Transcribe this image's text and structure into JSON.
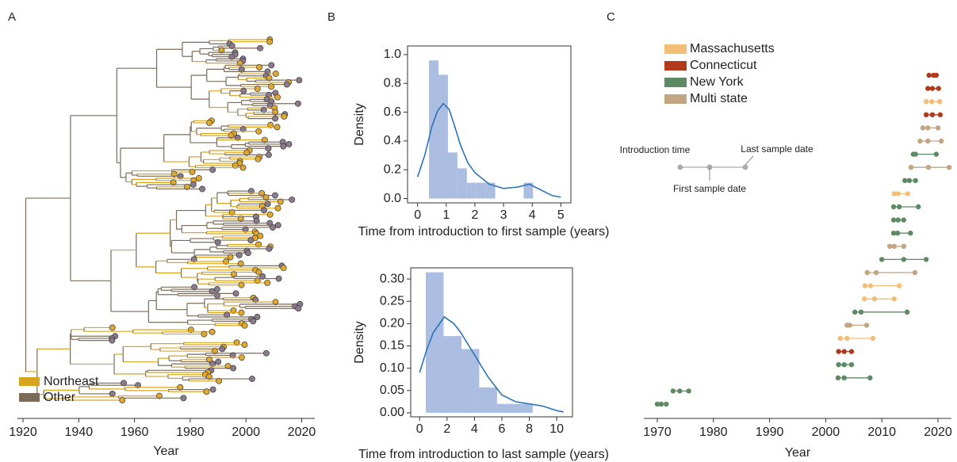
{
  "chart_data": [
    {
      "type": "tree",
      "panel_label": "A",
      "xlabel": "Year",
      "xlim": [
        1918,
        2024.7
      ],
      "xticks": [
        1920,
        1940,
        1960,
        1980,
        2000,
        2020
      ],
      "legend": [
        {
          "name": "Northeast",
          "color": "#d9a520"
        },
        {
          "name": "Other",
          "color": "#7b6b58"
        }
      ]
    },
    {
      "type": "histogram",
      "panel_label": "B",
      "xlabel": "Time from introduction to first sample (years)",
      "ylabel": "Density",
      "bins": [
        0.4,
        0.73,
        1.06,
        1.39,
        1.72,
        2.05,
        2.38,
        2.71,
        3.04,
        3.37,
        3.7,
        4.03
      ],
      "values": [
        0.96,
        0.86,
        0.32,
        0.21,
        0.11,
        0.11,
        0.11,
        0,
        0,
        0,
        0.11
      ],
      "color": "#9db1dd",
      "curve": {
        "x": [
          0,
          0.25,
          0.5,
          0.7,
          0.9,
          1.1,
          1.3,
          1.5,
          1.75,
          2,
          2.5,
          3,
          3.5,
          3.9,
          4.3,
          4.7,
          5
        ],
        "values": [
          0.15,
          0.3,
          0.5,
          0.61,
          0.66,
          0.62,
          0.5,
          0.37,
          0.25,
          0.18,
          0.1,
          0.07,
          0.08,
          0.1,
          0.06,
          0.02,
          0.01
        ],
        "color": "#2b73b6"
      },
      "xlim": [
        -0.35,
        5.35
      ],
      "ylim": [
        -0.03,
        1.06
      ],
      "xticks": [
        0,
        1,
        2,
        3,
        4,
        5
      ],
      "yticks": [
        {
          "value": 0,
          "label": "0.0"
        },
        0.2,
        0.4,
        0.6,
        0.8,
        {
          "value": 1,
          "label": "1.0"
        }
      ]
    },
    {
      "type": "histogram",
      "xlabel": "Time from introduction to last sample (years)",
      "ylabel": "Density",
      "bins": [
        0.45,
        1.75,
        3.05,
        4.35,
        5.65,
        6.95,
        8.25
      ],
      "values": [
        0.315,
        0.172,
        0.143,
        0.057,
        0.02,
        0.02
      ],
      "color": "#9db1dd",
      "curve": {
        "x": [
          0,
          0.5,
          1,
          1.8,
          2.5,
          3,
          4,
          5,
          6,
          7,
          8,
          9,
          10,
          10.5
        ],
        "values": [
          0.09,
          0.14,
          0.18,
          0.215,
          0.2,
          0.18,
          0.13,
          0.08,
          0.04,
          0.025,
          0.02,
          0.015,
          0.005,
          0.002
        ],
        "color": "#2b73b6"
      },
      "xlim": [
        -0.65,
        11.15
      ],
      "ylim": [
        -0.009,
        0.325
      ],
      "xticks": [
        0,
        2,
        4,
        6,
        8,
        10
      ],
      "yticks": [
        {
          "value": 0,
          "label": "0.00"
        },
        {
          "value": 0.05,
          "label": "0.05"
        },
        {
          "value": 0.1,
          "label": "0.10"
        },
        {
          "value": 0.15,
          "label": "0.15"
        },
        {
          "value": 0.2,
          "label": "0.20"
        },
        {
          "value": 0.25,
          "label": "0.25"
        },
        {
          "value": 0.3,
          "label": "0.30"
        }
      ]
    },
    {
      "type": "dumbbell",
      "panel_label": "C",
      "xlabel": "Year",
      "xlim": [
        1967.6,
        2022.4
      ],
      "xticks": [
        1970,
        1980,
        1990,
        2000,
        2010,
        2020
      ],
      "series": [
        {
          "name": "Massachusetts",
          "color": "#f2bf78"
        },
        {
          "name": "Connecticut",
          "color": "#b23a1c"
        },
        {
          "name": "New York",
          "color": "#5e8a63"
        },
        {
          "name": "Multi state",
          "color": "#c2a581"
        }
      ],
      "key_labels": [
        "Introduction time",
        "First sample date",
        "Last sample date"
      ],
      "groups": [
        "Connecticut",
        "Connecticut",
        "Massachusetts",
        "Connecticut",
        "Multi state",
        "Multi state",
        "New York",
        "Multi state",
        "New York",
        "Massachusetts",
        "New York",
        "New York",
        "New York",
        "Multi state",
        "New York",
        "Multi state",
        "Massachusetts",
        "Massachusetts",
        "New York",
        "Multi state",
        "Massachusetts",
        "Connecticut",
        "New York",
        "New York",
        "New York",
        "New York"
      ],
      "introduction": [
        2018.4,
        2018.2,
        2017.9,
        2017.9,
        2017.3,
        2016.8,
        2015.6,
        2015.2,
        2014.1,
        2012.2,
        2012.1,
        2012.1,
        2012.1,
        2011.4,
        2010,
        2007.4,
        2007,
        2006.9,
        2005.2,
        2003.8,
        2002.6,
        2002.3,
        2002.3,
        2002.2,
        1972.8,
        1970
      ],
      "first_sample": [
        2019.2,
        2019,
        2018.9,
        2019,
        2018.2,
        2018.2,
        2016,
        2018.3,
        2014.9,
        2012.9,
        2013.1,
        2012.9,
        2012.8,
        2012.2,
        2013.9,
        2009,
        2008,
        2008.7,
        2006.3,
        2004.3,
        2003.8,
        2003.3,
        2003.3,
        2003.3,
        1974,
        1970.7
      ],
      "last_sample": [
        2019.7,
        2020.1,
        2020.3,
        2020.4,
        2020,
        2020.6,
        2019.7,
        2022,
        2016,
        2014.6,
        2016.5,
        2013.9,
        2015.1,
        2013.9,
        2017.9,
        2015.9,
        2013.1,
        2012.2,
        2014.5,
        2007.3,
        2008.4,
        2004.6,
        2004.6,
        2007.9,
        1975.6,
        1971.6
      ]
    }
  ]
}
